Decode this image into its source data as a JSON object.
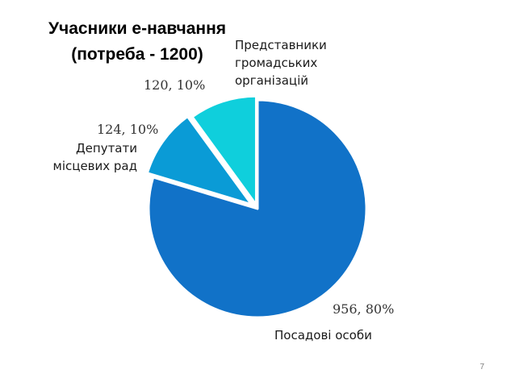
{
  "title": {
    "line1": "Учасники е-навчання",
    "line2": "(потреба - 1200)"
  },
  "chart_data": {
    "type": "pie",
    "slices": [
      {
        "name_lines": [
          "Посадові особи"
        ],
        "value": 956,
        "percent": "80%",
        "value_label": "956, 80%",
        "color": "#1172c8"
      },
      {
        "name_lines": [
          "Депутати",
          "місцевих рад"
        ],
        "value": 124,
        "percent": "10%",
        "value_label": "124, 10%",
        "color": "#0a9bd6"
      },
      {
        "name_lines": [
          "Представники",
          "громадських",
          "організацій"
        ],
        "value": 120,
        "percent": "10%",
        "value_label": "120, 10%",
        "color": "#0fcfdc"
      }
    ],
    "legend": "none"
  },
  "page_number": "7"
}
